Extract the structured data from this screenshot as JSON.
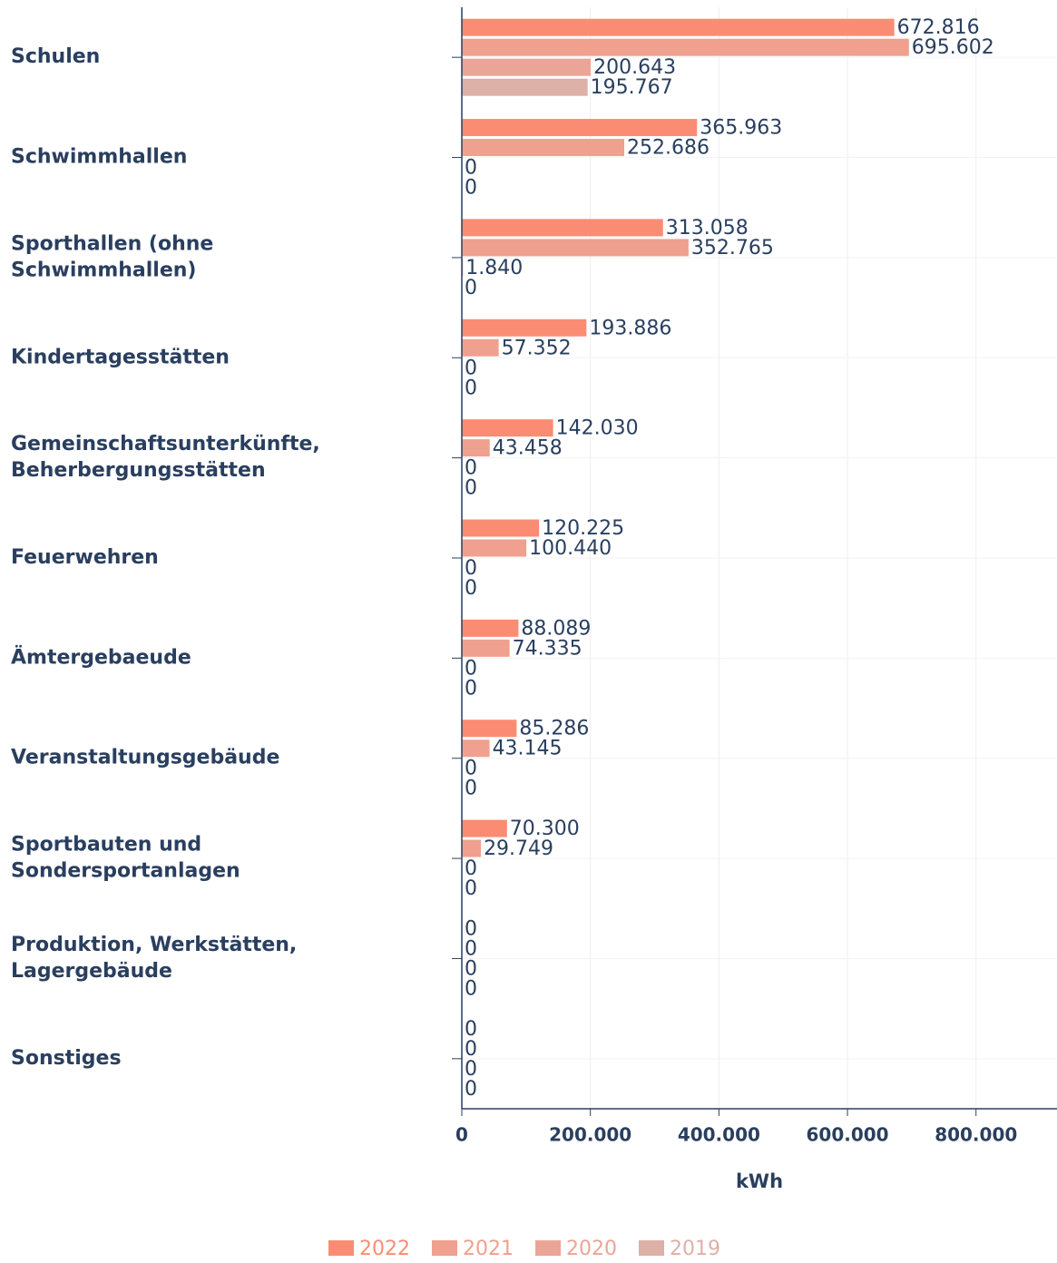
{
  "chart_data": {
    "type": "bar",
    "orientation": "horizontal",
    "categories": [
      "Schulen",
      "Schwimmhallen",
      "Sporthallen (ohne Schwimmhallen)",
      "Kindertagesstätten",
      "Gemeinschaftsunterkünfte, Beherbergungsstätten",
      "Feuerwehren",
      "Ämtergebaeude",
      "Veranstaltungsgebäude",
      "Sportbauten und Sondersportanlagen",
      "Produktion, Werkstätten, Lagergebäude",
      "Sonstiges"
    ],
    "series": [
      {
        "name": "2022",
        "color": "#fb8c74",
        "values": [
          672816,
          365963,
          313058,
          193886,
          142030,
          120225,
          88089,
          85286,
          70300,
          0,
          0
        ],
        "value_labels": [
          "672.816",
          "365.963",
          "313.058",
          "193.886",
          "142.030",
          "120.225",
          "88.089",
          "85.286",
          "70.300",
          "0",
          "0"
        ]
      },
      {
        "name": "2021",
        "color": "#f0a08e",
        "values": [
          695602,
          252686,
          352765,
          57352,
          43458,
          100440,
          74335,
          43145,
          29749,
          0,
          0
        ],
        "value_labels": [
          "695.602",
          "252.686",
          "352.765",
          "57.352",
          "43.458",
          "100.440",
          "74.335",
          "43.145",
          "29.749",
          "0",
          "0"
        ]
      },
      {
        "name": "2020",
        "color": "#eba596",
        "values": [
          200643,
          0,
          1840,
          0,
          0,
          0,
          0,
          0,
          0,
          0,
          0
        ],
        "value_labels": [
          "200.643",
          "0",
          "1.840",
          "0",
          "0",
          "0",
          "0",
          "0",
          "0",
          "0",
          "0"
        ]
      },
      {
        "name": "2019",
        "color": "#ddb0a8",
        "values": [
          195767,
          0,
          0,
          0,
          0,
          0,
          0,
          0,
          0,
          0,
          0
        ],
        "value_labels": [
          "195.767",
          "0",
          "0",
          "0",
          "0",
          "0",
          "0",
          "0",
          "0",
          "0",
          "0"
        ]
      }
    ],
    "x_label": "kWh",
    "xlim": [
      0,
      926000
    ],
    "xticks": [
      0,
      {
        "value": 200000,
        "label": "200.000"
      },
      {
        "value": 400000,
        "label": "400.000"
      },
      {
        "value": 600000,
        "label": "600.000"
      },
      {
        "value": 800000,
        "label": "800.000"
      }
    ],
    "grid": true,
    "legend": "bottom"
  }
}
